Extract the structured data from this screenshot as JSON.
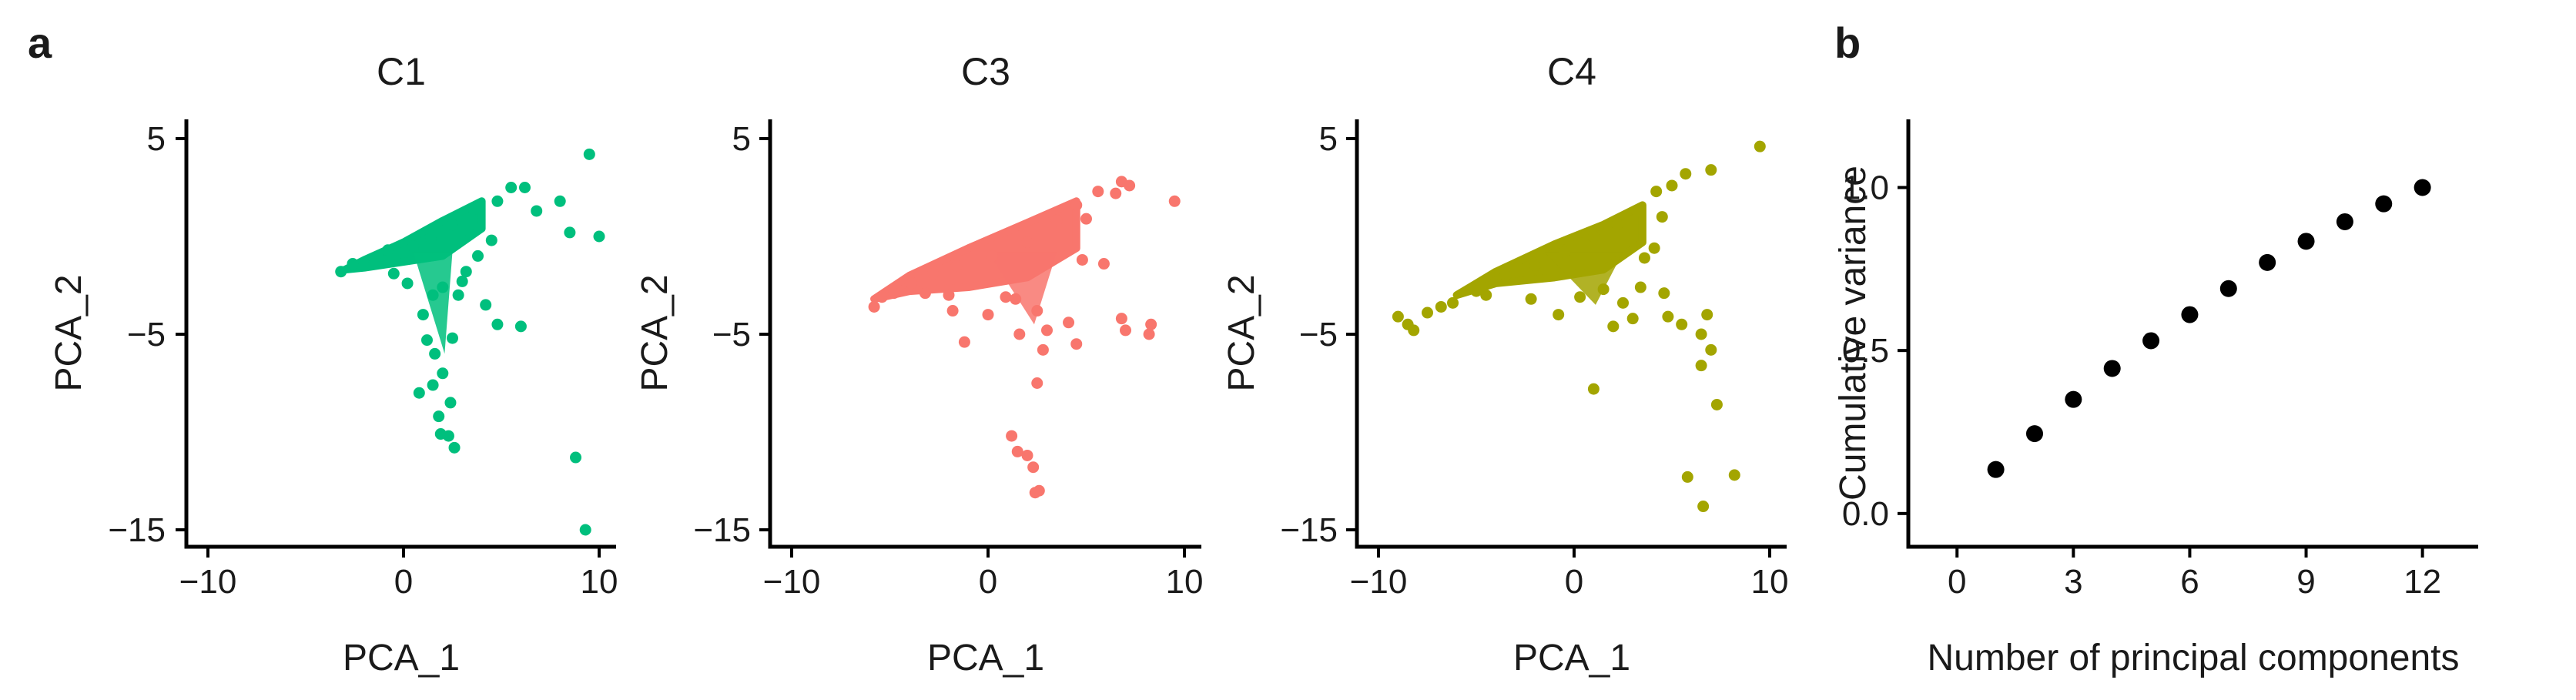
{
  "panel_labels": {
    "a": "a",
    "b": "b"
  },
  "chart_data": [
    {
      "type": "scatter",
      "title": "C1",
      "xlabel": "PCA_1",
      "ylabel": "PCA_2",
      "xlim": [
        -10,
        10
      ],
      "ylim": [
        -15,
        5
      ],
      "xticks": [
        -10,
        0,
        10
      ],
      "yticks": [
        5,
        -5,
        -15
      ],
      "xtick_labels": [
        "−10",
        "0",
        "10"
      ],
      "ytick_labels": [
        "5",
        "−5",
        "−15"
      ],
      "color": "#00BF7D",
      "cloud": {
        "tail": [
          -3.0,
          -1.7
        ],
        "wedge_top": [
          [
            -2,
            -1.2
          ],
          [
            0,
            -0.3
          ],
          [
            2,
            0.8
          ],
          [
            4,
            1.8
          ]
        ],
        "wedge_bottom": [
          [
            -2,
            -1.6
          ],
          [
            0,
            -1.3
          ],
          [
            2,
            -1.0
          ],
          [
            4,
            0.4
          ]
        ],
        "stem": [
          0.5,
          2.5,
          -1.0,
          -6.0
        ]
      },
      "points": [
        [
          -3.2,
          -1.8
        ],
        [
          -2.6,
          -1.4
        ],
        [
          -1.5,
          -1.1
        ],
        [
          -0.8,
          -0.7
        ],
        [
          0.5,
          -0.5
        ],
        [
          1.4,
          -0.1
        ],
        [
          2.5,
          0.6
        ],
        [
          3.6,
          1.4
        ],
        [
          4.8,
          1.8
        ],
        [
          5.5,
          2.5
        ],
        [
          6.2,
          2.5
        ],
        [
          6.8,
          1.3
        ],
        [
          8.0,
          1.8
        ],
        [
          8.5,
          0.2
        ],
        [
          9.5,
          4.2
        ],
        [
          10.0,
          0.0
        ],
        [
          4.5,
          -0.2
        ],
        [
          3.8,
          -1.0
        ],
        [
          3.2,
          -1.8
        ],
        [
          2.8,
          -3.0
        ],
        [
          4.2,
          -3.5
        ],
        [
          4.8,
          -4.5
        ],
        [
          6.0,
          -4.6
        ],
        [
          2.5,
          -5.2
        ],
        [
          1.5,
          -3.0
        ],
        [
          1.0,
          -4.0
        ],
        [
          1.2,
          -5.3
        ],
        [
          1.6,
          -6.0
        ],
        [
          2.0,
          -7.0
        ],
        [
          1.5,
          -7.6
        ],
        [
          0.8,
          -8.0
        ],
        [
          2.4,
          -8.5
        ],
        [
          1.8,
          -9.2
        ],
        [
          2.3,
          -10.2
        ],
        [
          2.6,
          -10.8
        ],
        [
          1.9,
          -10.1
        ],
        [
          8.8,
          -11.3
        ],
        [
          9.3,
          -15.0
        ],
        [
          0.2,
          -2.4
        ],
        [
          -0.5,
          -1.9
        ],
        [
          2.0,
          -2.6
        ],
        [
          3.0,
          -2.3
        ]
      ]
    },
    {
      "type": "scatter",
      "title": "C3",
      "xlabel": "PCA_1",
      "ylabel": "PCA_2",
      "xlim": [
        -10,
        10
      ],
      "ylim": [
        -15,
        5
      ],
      "xticks": [
        -10,
        0,
        10
      ],
      "yticks": [
        5,
        -5,
        -15
      ],
      "xtick_labels": [
        "−10",
        "0",
        "10"
      ],
      "ytick_labels": [
        "5",
        "−5",
        "−15"
      ],
      "color": "#F8766D",
      "cloud": {
        "tail": [
          -5.8,
          -3.2
        ],
        "wedge_top": [
          [
            -4,
            -2.0
          ],
          [
            -1,
            -0.6
          ],
          [
            2,
            0.7
          ],
          [
            4.5,
            1.8
          ]
        ],
        "wedge_bottom": [
          [
            -4,
            -2.8
          ],
          [
            -1,
            -2.6
          ],
          [
            2,
            -2.1
          ],
          [
            4.5,
            -0.6
          ]
        ],
        "stem": [
          0.0,
          3.5,
          -2.5,
          -4.5
        ]
      },
      "points": [
        [
          -5.8,
          -3.6
        ],
        [
          -5.4,
          -3.1
        ],
        [
          -4.8,
          -2.9
        ],
        [
          -3.9,
          -2.4
        ],
        [
          -2.8,
          -1.9
        ],
        [
          -1.6,
          -1.5
        ],
        [
          0.2,
          -1.0
        ],
        [
          2.0,
          -0.3
        ],
        [
          3.5,
          0.8
        ],
        [
          4.5,
          1.6
        ],
        [
          5.6,
          2.3
        ],
        [
          6.5,
          2.2
        ],
        [
          6.8,
          2.8
        ],
        [
          7.2,
          2.6
        ],
        [
          9.5,
          1.8
        ],
        [
          5.0,
          0.9
        ],
        [
          4.8,
          -1.2
        ],
        [
          5.9,
          -1.4
        ],
        [
          6.8,
          -4.2
        ],
        [
          7.0,
          -4.8
        ],
        [
          8.3,
          -4.5
        ],
        [
          8.2,
          -5.0
        ],
        [
          4.1,
          -4.4
        ],
        [
          4.5,
          -5.5
        ],
        [
          3.0,
          -4.8
        ],
        [
          2.5,
          -3.8
        ],
        [
          1.4,
          -3.2
        ],
        [
          0.0,
          -4.0
        ],
        [
          -1.2,
          -5.4
        ],
        [
          -1.8,
          -3.8
        ],
        [
          1.6,
          -5.0
        ],
        [
          2.8,
          -5.8
        ],
        [
          2.5,
          -7.5
        ],
        [
          1.2,
          -10.2
        ],
        [
          1.5,
          -11.0
        ],
        [
          2.0,
          -11.2
        ],
        [
          2.3,
          -11.8
        ],
        [
          2.6,
          -13.0
        ],
        [
          2.4,
          -13.1
        ],
        [
          -3.2,
          -2.9
        ],
        [
          -2.0,
          -3.0
        ],
        [
          0.9,
          -3.1
        ]
      ]
    },
    {
      "type": "scatter",
      "title": "C4",
      "xlabel": "PCA_1",
      "ylabel": "PCA_2",
      "xlim": [
        -10,
        10
      ],
      "ylim": [
        -15,
        5
      ],
      "xticks": [
        -10,
        0,
        10
      ],
      "yticks": [
        5,
        -5,
        -15
      ],
      "xtick_labels": [
        "−10",
        "0",
        "10"
      ],
      "ytick_labels": [
        "5",
        "−5",
        "−15"
      ],
      "color": "#A3A500",
      "cloud": {
        "tail": [
          -6.0,
          -3.0
        ],
        "wedge_top": [
          [
            -4,
            -1.8
          ],
          [
            -1,
            -0.4
          ],
          [
            1.5,
            0.6
          ],
          [
            3.5,
            1.6
          ]
        ],
        "wedge_bottom": [
          [
            -4,
            -2.4
          ],
          [
            -1,
            -2.1
          ],
          [
            1.5,
            -1.7
          ],
          [
            3.5,
            -0.3
          ]
        ],
        "stem": [
          -1.5,
          2.5,
          -2.0,
          -3.5
        ]
      },
      "points": [
        [
          -9.0,
          -4.1
        ],
        [
          -8.5,
          -4.5
        ],
        [
          -8.2,
          -4.8
        ],
        [
          -7.5,
          -3.9
        ],
        [
          -6.8,
          -3.6
        ],
        [
          -6.2,
          -3.4
        ],
        [
          -5.0,
          -2.8
        ],
        [
          -3.5,
          -2.0
        ],
        [
          -2.0,
          -1.5
        ],
        [
          -0.5,
          -0.8
        ],
        [
          1.0,
          0.0
        ],
        [
          2.2,
          0.6
        ],
        [
          3.2,
          1.3
        ],
        [
          4.2,
          2.3
        ],
        [
          5.0,
          2.6
        ],
        [
          5.7,
          3.2
        ],
        [
          7.0,
          3.4
        ],
        [
          9.5,
          4.6
        ],
        [
          4.5,
          1.0
        ],
        [
          4.1,
          -0.6
        ],
        [
          3.6,
          -1.1
        ],
        [
          3.4,
          -2.6
        ],
        [
          4.6,
          -2.9
        ],
        [
          4.8,
          -4.1
        ],
        [
          5.5,
          -4.5
        ],
        [
          6.8,
          -4.0
        ],
        [
          6.5,
          -5.0
        ],
        [
          7.0,
          -5.8
        ],
        [
          7.3,
          -8.6
        ],
        [
          6.5,
          -6.6
        ],
        [
          5.8,
          -12.3
        ],
        [
          6.6,
          -13.8
        ],
        [
          8.2,
          -12.2
        ],
        [
          1.0,
          -7.8
        ],
        [
          -0.8,
          -4.0
        ],
        [
          -2.2,
          -3.2
        ],
        [
          0.3,
          -3.1
        ],
        [
          1.5,
          -2.7
        ],
        [
          2.5,
          -3.4
        ],
        [
          -4.5,
          -3.0
        ],
        [
          3.0,
          -4.2
        ],
        [
          2.0,
          -4.6
        ]
      ]
    },
    {
      "type": "scatter",
      "title": "",
      "xlabel": "Number of principal components",
      "ylabel": "Cumulative variance",
      "xlim": [
        -0.7,
        13
      ],
      "ylim": [
        -0.05,
        1.15
      ],
      "xticks": [
        0,
        3,
        6,
        9,
        12
      ],
      "yticks": [
        0.0,
        0.5,
        1.0
      ],
      "xtick_labels": [
        "0",
        "3",
        "6",
        "9",
        "12"
      ],
      "ytick_labels": [
        "0.0",
        "0.5",
        "1.0"
      ],
      "color": "#000000",
      "points": [
        [
          1,
          0.135
        ],
        [
          2,
          0.245
        ],
        [
          3,
          0.35
        ],
        [
          4,
          0.445
        ],
        [
          5,
          0.53
        ],
        [
          6,
          0.61
        ],
        [
          7,
          0.69
        ],
        [
          8,
          0.77
        ],
        [
          9,
          0.835
        ],
        [
          10,
          0.895
        ],
        [
          11,
          0.95
        ],
        [
          12,
          1.0
        ]
      ]
    }
  ]
}
